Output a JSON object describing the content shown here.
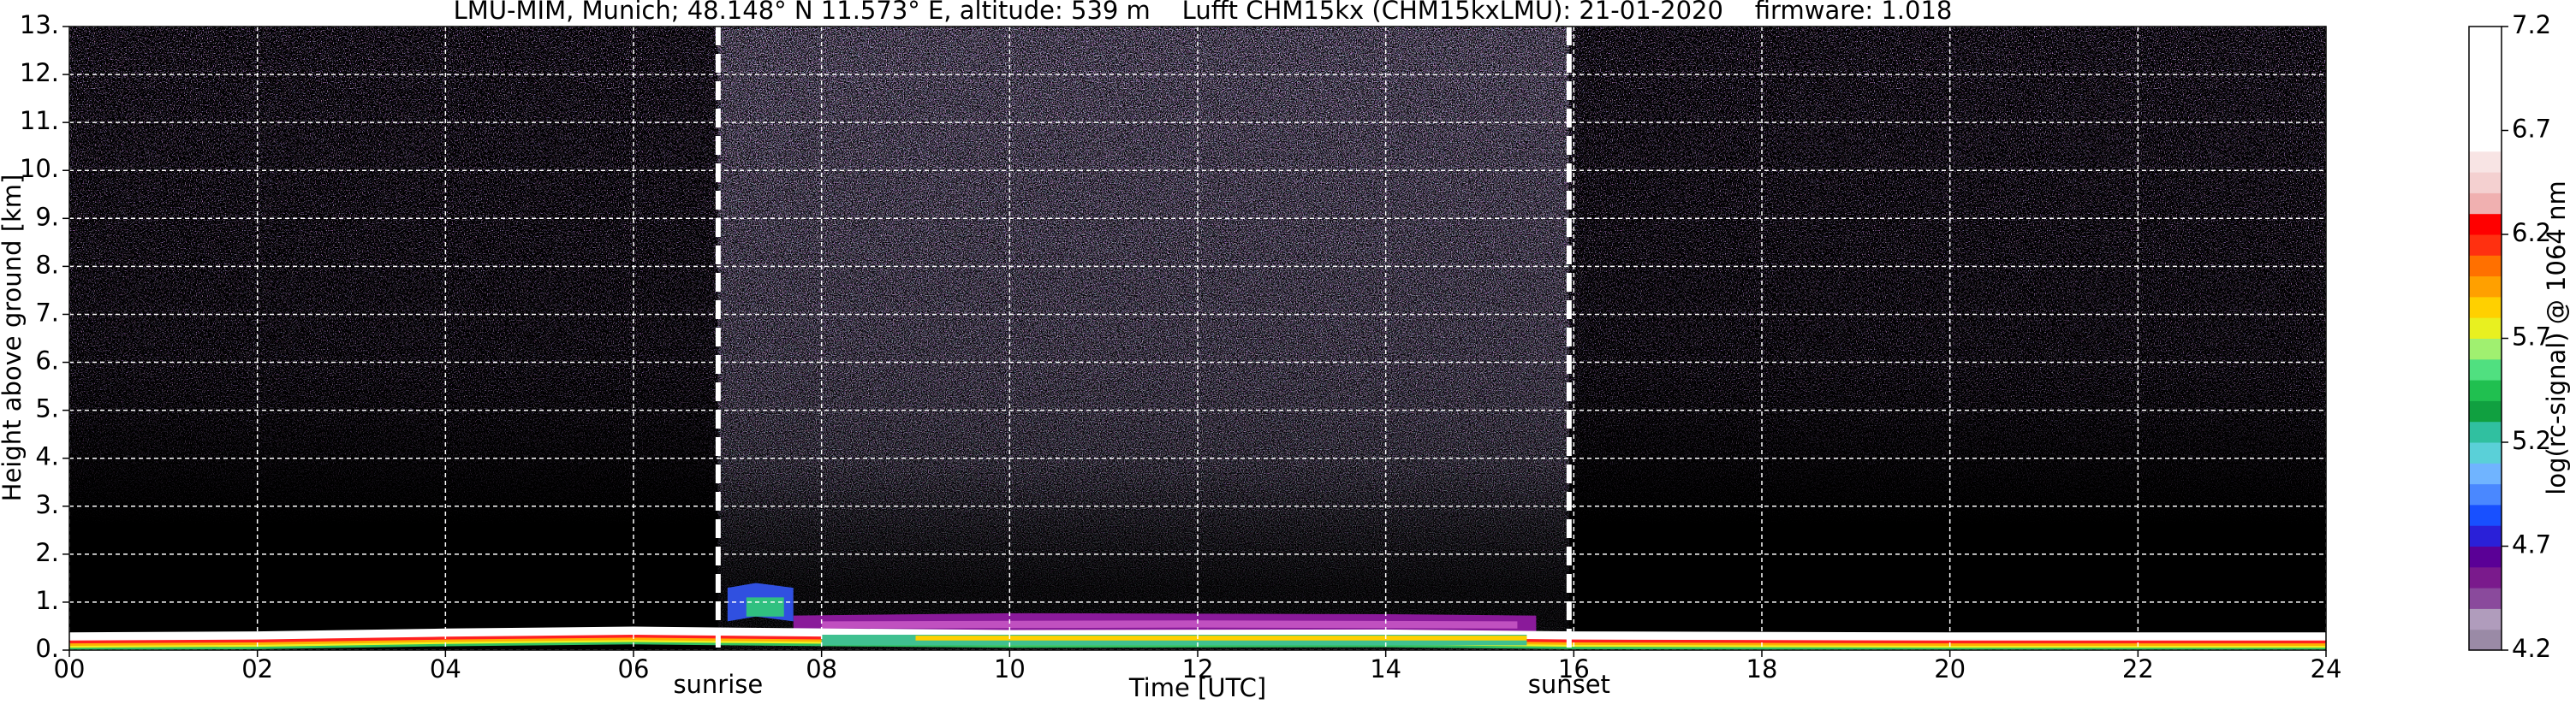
{
  "chart_data": {
    "type": "heatmap",
    "title": "LMU-MIM, Munich; 48.148° N 11.573° E, altitude: 539 m    Lufft CHM15kx (CHM15kxLMU): 21-01-2020    firmware: 1.018",
    "xlabel": "Time [UTC]",
    "ylabel": "Height above ground [km]",
    "xlim": [
      0,
      24
    ],
    "ylim": [
      0,
      13
    ],
    "xticks": [
      {
        "value": 0,
        "label": "00"
      },
      {
        "value": 2,
        "label": "02"
      },
      {
        "value": 4,
        "label": "04"
      },
      {
        "value": 6,
        "label": "06"
      },
      {
        "value": 8,
        "label": "08"
      },
      {
        "value": 10,
        "label": "10"
      },
      {
        "value": 12,
        "label": "12"
      },
      {
        "value": 14,
        "label": "14"
      },
      {
        "value": 16,
        "label": "16"
      },
      {
        "value": 18,
        "label": "18"
      },
      {
        "value": 20,
        "label": "20"
      },
      {
        "value": 22,
        "label": "22"
      },
      {
        "value": 24,
        "label": "24"
      }
    ],
    "yticks": [
      {
        "value": 0,
        "label": "0."
      },
      {
        "value": 1,
        "label": "1."
      },
      {
        "value": 2,
        "label": "2."
      },
      {
        "value": 3,
        "label": "3."
      },
      {
        "value": 4,
        "label": "4."
      },
      {
        "value": 5,
        "label": "5."
      },
      {
        "value": 6,
        "label": "6."
      },
      {
        "value": 7,
        "label": "7."
      },
      {
        "value": 8,
        "label": "8."
      },
      {
        "value": 9,
        "label": "9."
      },
      {
        "value": 10,
        "label": "10."
      },
      {
        "value": 11,
        "label": "11."
      },
      {
        "value": 12,
        "label": "12."
      },
      {
        "value": 13,
        "label": "13."
      }
    ],
    "grid": true,
    "annotations": [
      {
        "text": "sunrise",
        "x": 6.9
      },
      {
        "text": "sunset",
        "x": 15.95
      }
    ],
    "colorbar": {
      "label": "log(rc-signal) @ 1064 nm",
      "lim": [
        4.2,
        7.2
      ],
      "ticks": [
        4.2,
        4.7,
        5.2,
        5.7,
        6.2,
        6.7,
        7.2
      ],
      "levels": [
        4.2,
        4.3,
        4.4,
        4.5,
        4.6,
        4.7,
        4.8,
        4.9,
        5.0,
        5.1,
        5.2,
        5.3,
        5.4,
        5.5,
        5.6,
        5.7,
        5.8,
        5.9,
        6.0,
        6.1,
        6.2,
        6.3,
        6.4,
        6.5,
        6.6,
        6.7,
        6.8,
        6.9,
        7.0,
        7.1,
        7.2
      ],
      "colors": [
        "#9a8aa6",
        "#b09cbc",
        "#8a4a9c",
        "#7a1a8c",
        "#5a0096",
        "#2a20d8",
        "#1850ff",
        "#4a88ff",
        "#70b4ff",
        "#5ad0d8",
        "#30c0a0",
        "#10a040",
        "#20c050",
        "#50e080",
        "#a0f070",
        "#e8f020",
        "#ffd000",
        "#ffa000",
        "#ff7000",
        "#ff3010",
        "#ff0000",
        "#f0b0b0",
        "#f4d0d0",
        "#f8e4e4",
        "#ffffff",
        "#ffffff",
        "#ffffff",
        "#ffffff",
        "#ffffff",
        "#ffffff"
      ]
    }
  }
}
